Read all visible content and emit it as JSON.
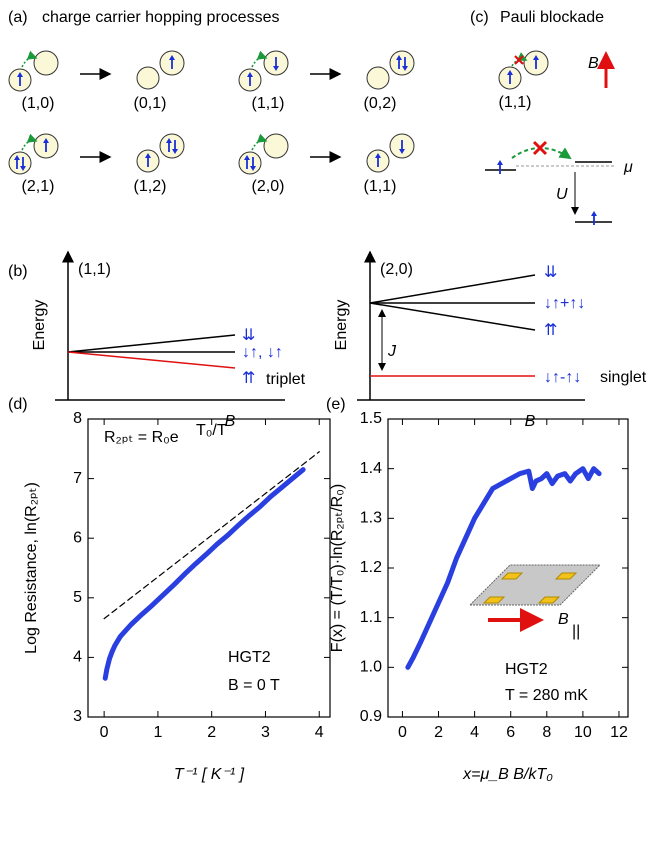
{
  "panel_a": {
    "label": "(a)",
    "title": "charge carrier hopping processes",
    "processes": [
      {
        "from": "(1,0)",
        "to": "(0,1)"
      },
      {
        "from": "(1,1)",
        "to": "(0,2)"
      },
      {
        "from": "(2,1)",
        "to": "(1,2)"
      },
      {
        "from": "(2,0)",
        "to": "(1,1)"
      }
    ]
  },
  "panel_c": {
    "label": "(c)",
    "title": "Pauli blockade",
    "state": "(1,1)",
    "field": "B",
    "mu": "μ",
    "charging": "U"
  },
  "panel_b": {
    "label": "(b)",
    "left": {
      "state": "(1,1)",
      "y_label": "Energy",
      "x_label": "B",
      "levels": [
        "⇊",
        "↓↑, ↓↑",
        "⇈"
      ],
      "note": "triplet"
    },
    "right": {
      "state": "(2,0)",
      "y_label": "Energy",
      "x_label": "B",
      "levels": [
        "⇊",
        "↓↑+↑↓",
        "⇈"
      ],
      "exchange": "J",
      "singlet_level": "↓↑-↑↓",
      "note": "singlet"
    }
  },
  "chart_data": [
    {
      "type": "line",
      "label": "(d)",
      "y_label": "Log Resistance, ln(R₂ₚₜ)",
      "x_label": "T⁻¹  [ K⁻¹ ]",
      "xlim": [
        -0.3,
        4.2
      ],
      "ylim": [
        3,
        8
      ],
      "xticks": [
        0,
        1,
        2,
        3,
        4
      ],
      "yticks": [
        3,
        4,
        5,
        6,
        7,
        8
      ],
      "annotations": {
        "formula": "R₂ₚₜ = R₀e",
        "formula_exp": "T₀/T",
        "sample": "HGT2",
        "condition": "B = 0 T"
      },
      "series": [
        {
          "color": "#2a3fe0",
          "x": [
            0.02,
            0.05,
            0.1,
            0.15,
            0.2,
            0.3,
            0.4,
            0.5,
            0.7,
            0.9,
            1.1,
            1.3,
            1.5,
            1.7,
            1.9,
            2.1,
            2.3,
            2.5,
            2.7,
            2.9,
            3.1,
            3.3,
            3.5,
            3.7
          ],
          "values": [
            3.65,
            3.8,
            3.98,
            4.1,
            4.2,
            4.35,
            4.45,
            4.55,
            4.72,
            4.88,
            5.05,
            5.22,
            5.4,
            5.57,
            5.73,
            5.9,
            6.05,
            6.22,
            6.38,
            6.53,
            6.7,
            6.85,
            7.0,
            7.15
          ]
        },
        {
          "color": "#000000",
          "dashed": true,
          "x": [
            0,
            4
          ],
          "values": [
            4.65,
            7.45
          ]
        }
      ]
    },
    {
      "type": "line",
      "label": "(e)",
      "y_label": "F(x) = (T/T₀)·ln(R₂ₚₜ/R₀)",
      "x_label": "x=μ_B B/kT₀",
      "xlim": [
        -0.8,
        12.5
      ],
      "ylim": [
        0.9,
        1.5
      ],
      "xticks": [
        0,
        2,
        4,
        6,
        8,
        10,
        12
      ],
      "yticks": [
        0.9,
        {
          "value": 1,
          "label": "1.0"
        },
        1.1,
        1.2,
        1.3,
        1.4,
        1.5
      ],
      "annotations": {
        "sample": "HGT2",
        "condition": "T = 280 mK",
        "field": "B",
        "field_sub": "||"
      },
      "series": [
        {
          "color": "#2a3fe0",
          "x": [
            0.3,
            0.6,
            1,
            1.5,
            2,
            2.5,
            3,
            3.5,
            4,
            4.5,
            5,
            5.5,
            6,
            6.5,
            7,
            7.2,
            7.4,
            7.7,
            8,
            8.3,
            8.6,
            9,
            9.3,
            9.6,
            10,
            10.3,
            10.6,
            10.9
          ],
          "values": [
            1.0,
            1.02,
            1.05,
            1.09,
            1.13,
            1.17,
            1.22,
            1.26,
            1.3,
            1.33,
            1.36,
            1.37,
            1.38,
            1.39,
            1.395,
            1.36,
            1.375,
            1.38,
            1.39,
            1.37,
            1.385,
            1.39,
            1.375,
            1.39,
            1.4,
            1.38,
            1.4,
            1.39
          ]
        }
      ]
    }
  ]
}
